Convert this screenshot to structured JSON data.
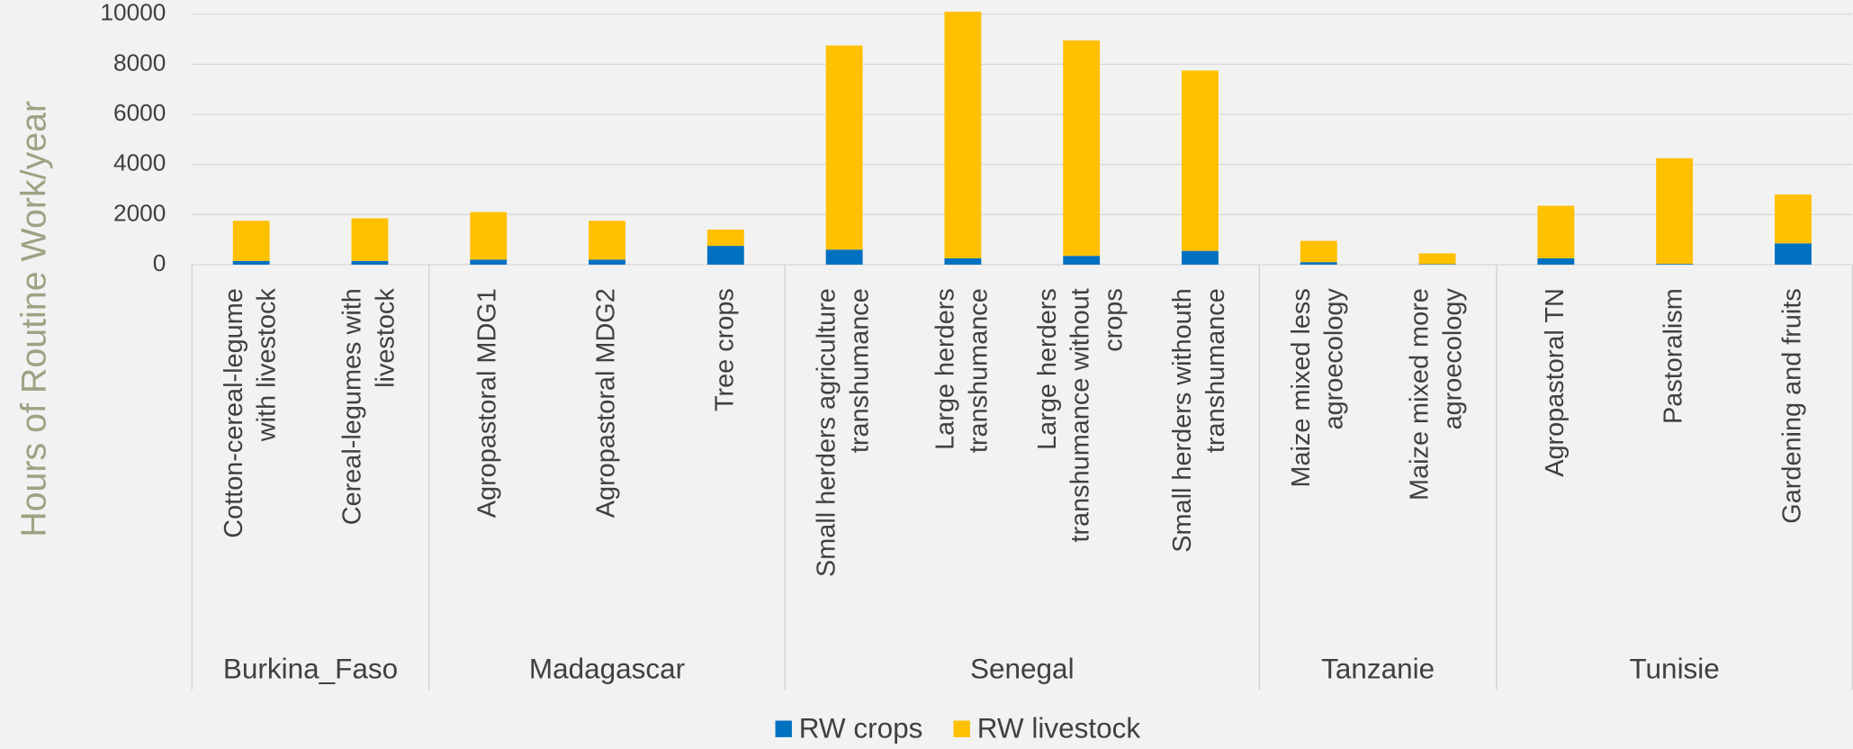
{
  "chart_data": {
    "type": "stacked_bar",
    "y_label": "Hours of Routine Work/year",
    "groups": [
      {
        "name": "Burkina_Faso",
        "categories": [
          "Cotton-cereal-legume\nwith livestock",
          "Cereal-legumes with\nlivestock"
        ]
      },
      {
        "name": "Madagascar",
        "categories": [
          "Agropastoral MDG1",
          "Agropastoral MDG2",
          "Tree crops"
        ]
      },
      {
        "name": "Senegal",
        "categories": [
          "Small herders agriculture\ntranshumance",
          "Large herders\ntranshumance",
          "Large herders\ntranshumance without\ncrops",
          "Small herders withouth\ntranshumance"
        ]
      },
      {
        "name": "Tanzanie",
        "categories": [
          "Maize mixed less\nagroecology",
          "Maize mixed more\nagroecology"
        ]
      },
      {
        "name": "Tunisie",
        "categories": [
          "Agropastoral TN",
          "Pastoralism",
          "Gardening and fruits"
        ]
      }
    ],
    "series": [
      {
        "name": "RW crops",
        "color": "#0070c0",
        "values": [
          150,
          150,
          200,
          200,
          750,
          600,
          250,
          350,
          550,
          100,
          20,
          250,
          30,
          850
        ]
      },
      {
        "name": "RW livestock",
        "color": "#ffc000",
        "values": [
          1600,
          1700,
          1900,
          1550,
          650,
          8150,
          9850,
          8600,
          7200,
          850,
          430,
          2100,
          4220,
          1950
        ]
      }
    ],
    "ylim": [
      0,
      10000
    ],
    "yticks": [
      0,
      2000,
      4000,
      6000,
      8000,
      10000
    ],
    "grid": true,
    "legend": "bottom"
  }
}
